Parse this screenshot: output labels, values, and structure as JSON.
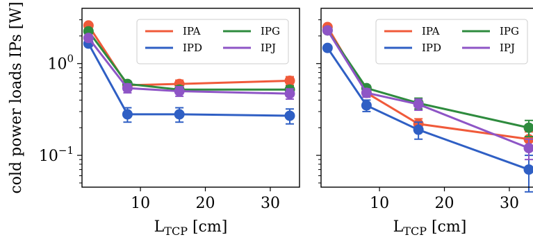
{
  "chart_data": [
    {
      "type": "line",
      "ylabel": "cold power loads IPs [W]",
      "xlabel": "L",
      "xlabel_sub": "TCP",
      "xlabel_unit": " [cm]",
      "y_scale": "log",
      "xlim": [
        1,
        34.5
      ],
      "ylim": [
        0.045,
        4.0
      ],
      "x_ticks": [
        10,
        20,
        30
      ],
      "y_ticks": [
        {
          "value": 1.0,
          "base": "10",
          "exp": "0"
        },
        {
          "value": 0.1,
          "base": "10",
          "exp": "−1"
        }
      ],
      "legend_position": "upper right, 2 columns",
      "x": [
        2,
        8,
        16,
        33
      ],
      "series": [
        {
          "name": "IPA",
          "color": "#f05a3a",
          "values": [
            2.6,
            0.58,
            0.6,
            0.65
          ],
          "errors": [
            0.1,
            0.04,
            0.06,
            0.07
          ]
        },
        {
          "name": "IPD",
          "color": "#2f5fc4",
          "values": [
            1.65,
            0.28,
            0.28,
            0.27
          ],
          "errors": [
            0.1,
            0.05,
            0.05,
            0.05
          ]
        },
        {
          "name": "IPG",
          "color": "#2e8b3e",
          "values": [
            2.25,
            0.6,
            0.52,
            0.52
          ],
          "errors": [
            0.1,
            0.04,
            0.05,
            0.05
          ]
        },
        {
          "name": "IPJ",
          "color": "#8e55c6",
          "values": [
            1.9,
            0.54,
            0.5,
            0.47
          ],
          "errors": [
            0.1,
            0.06,
            0.06,
            0.06
          ]
        }
      ]
    },
    {
      "type": "line",
      "xlabel": "L",
      "xlabel_sub": "TCP",
      "xlabel_unit": " [cm]",
      "y_scale": "log",
      "xlim": [
        1,
        34.5
      ],
      "ylim": [
        0.045,
        4.0
      ],
      "x_ticks": [
        10,
        20,
        30
      ],
      "legend_position": "upper right, 2 columns",
      "x": [
        2,
        8,
        16,
        33
      ],
      "series": [
        {
          "name": "IPA",
          "color": "#f05a3a",
          "values": [
            2.5,
            0.48,
            0.22,
            0.15
          ],
          "errors": [
            0.1,
            0.04,
            0.03,
            0.03
          ]
        },
        {
          "name": "IPD",
          "color": "#2f5fc4",
          "values": [
            1.48,
            0.35,
            0.19,
            0.07
          ],
          "errors": [
            0.08,
            0.05,
            0.04,
            0.03
          ]
        },
        {
          "name": "IPG",
          "color": "#2e8b3e",
          "values": [
            2.3,
            0.54,
            0.37,
            0.2
          ],
          "errors": [
            0.1,
            0.04,
            0.05,
            0.04
          ]
        },
        {
          "name": "IPJ",
          "color": "#8e55c6",
          "values": [
            2.3,
            0.48,
            0.36,
            0.12
          ],
          "errors": [
            0.1,
            0.05,
            0.05,
            0.03
          ]
        }
      ]
    }
  ]
}
